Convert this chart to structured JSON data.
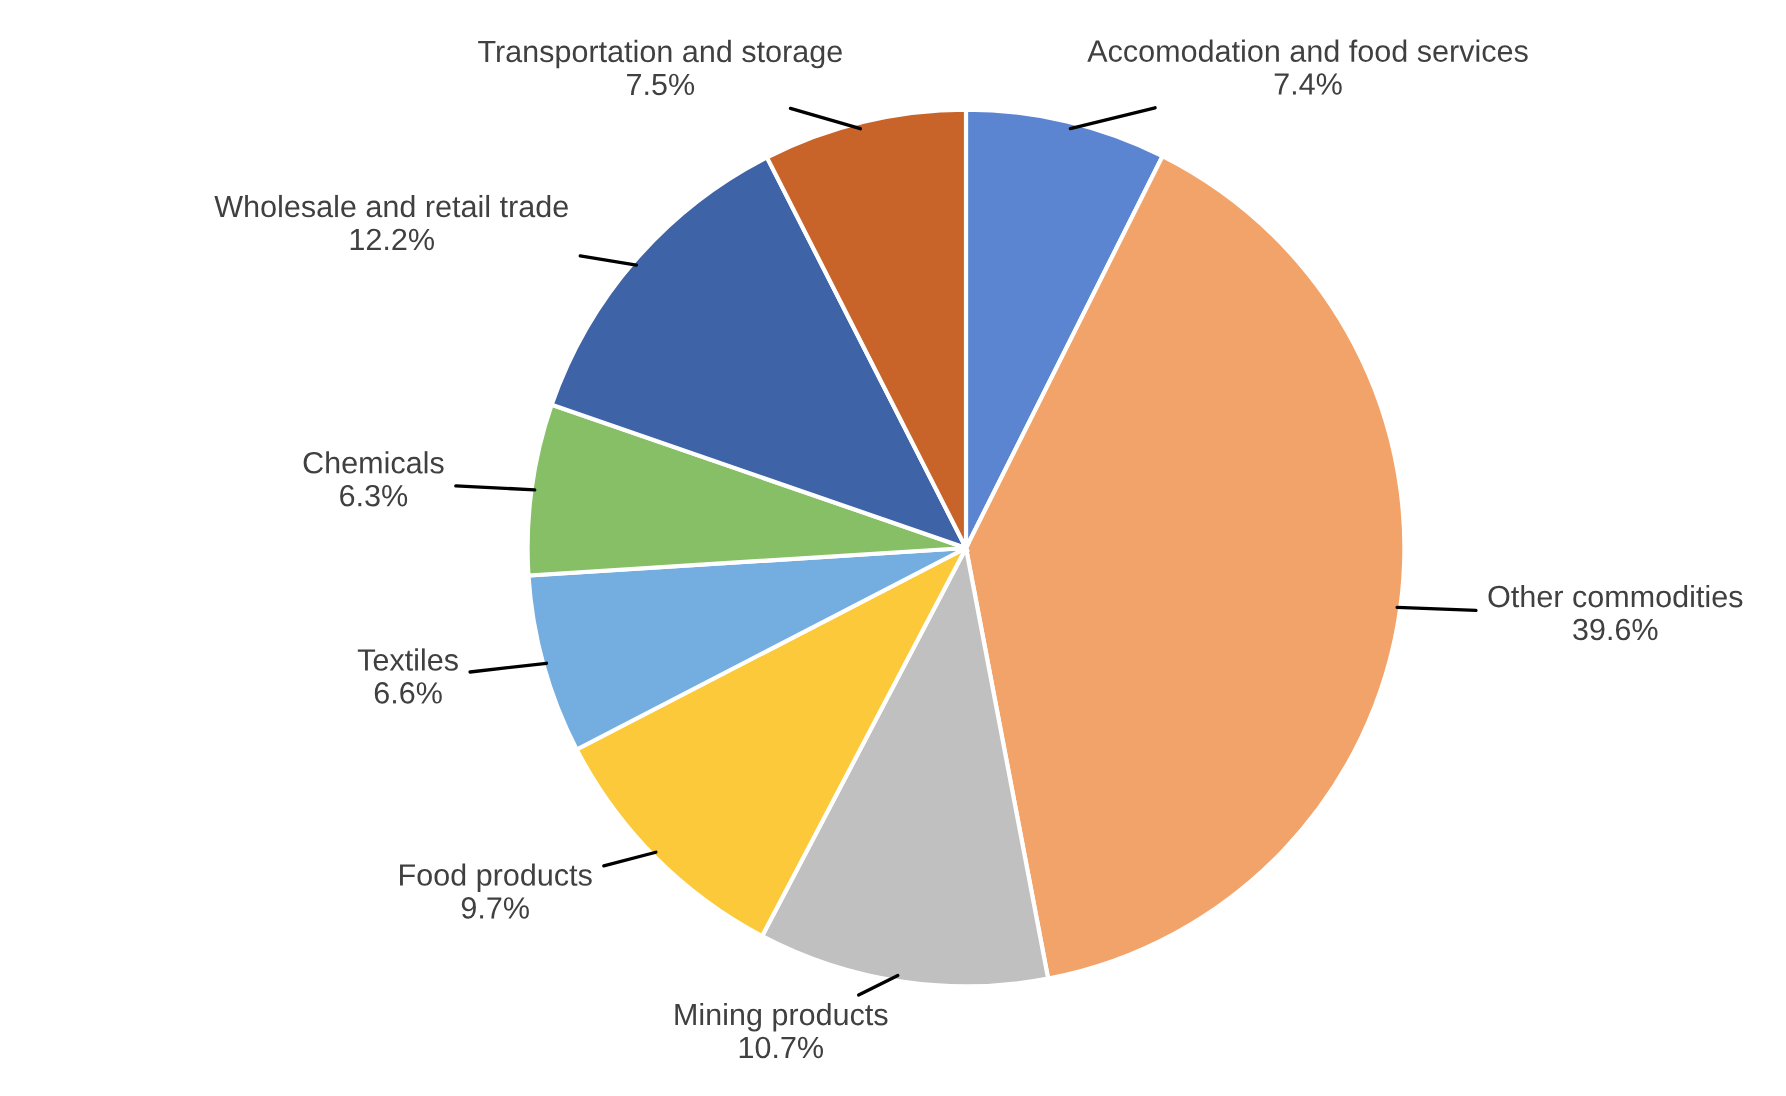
{
  "chart_data": {
    "type": "pie",
    "categories": [
      "Accomodation and food services",
      "Other commodities",
      "Mining products",
      "Food products",
      "Textiles",
      "Chemicals",
      "Wholesale and retail trade",
      "Transportation and storage"
    ],
    "values": [
      7.4,
      39.6,
      10.7,
      9.7,
      6.6,
      6.3,
      12.2,
      7.5
    ],
    "value_labels": [
      "7.4%",
      "39.6%",
      "10.7%",
      "9.7%",
      "6.6%",
      "6.3%",
      "12.2%",
      "7.5%"
    ],
    "colors": [
      "#5b85d0",
      "#f2a36a",
      "#c0c0c0",
      "#fcc93a",
      "#74aee0",
      "#86bf65",
      "#3e63a6",
      "#c8642a"
    ]
  }
}
